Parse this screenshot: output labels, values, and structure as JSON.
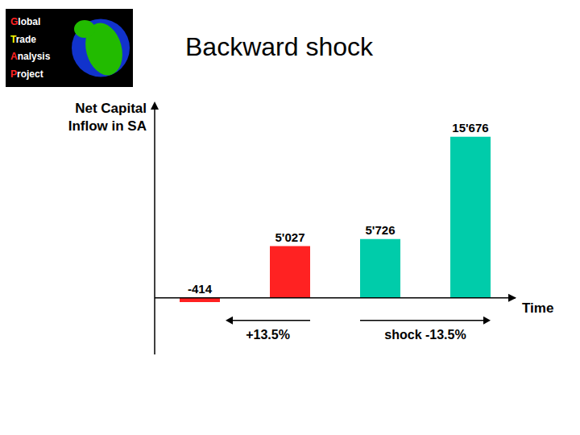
{
  "chart_data": {
    "type": "bar",
    "title": "Backward shock",
    "xlabel": "Time",
    "ylabel": [
      "Net Capital",
      "Inflow in SA"
    ],
    "categories": [
      null,
      null,
      null,
      null
    ],
    "values": [
      -414,
      5027,
      5726,
      15676
    ],
    "value_labels": [
      "-414",
      "5'027",
      "5'726",
      "15'676"
    ],
    "colors": [
      "#ff2222",
      "#ff2222",
      "#00ccaa",
      "#00ccaa"
    ],
    "ylim": [
      -5500,
      18000
    ],
    "tick_labels": false,
    "data_labels": true,
    "grid": false,
    "annotations": [
      {
        "text": "+13.5%"
      },
      {
        "text": "shock -13.5%"
      }
    ],
    "logo": [
      {
        "text": "Global",
        "color": "#ff2222"
      },
      {
        "text": "Trade",
        "color": "#ffff00"
      },
      {
        "text": "Analysis",
        "color": "#ff2222"
      },
      {
        "text": "Project",
        "color": "#ff2222"
      }
    ]
  }
}
